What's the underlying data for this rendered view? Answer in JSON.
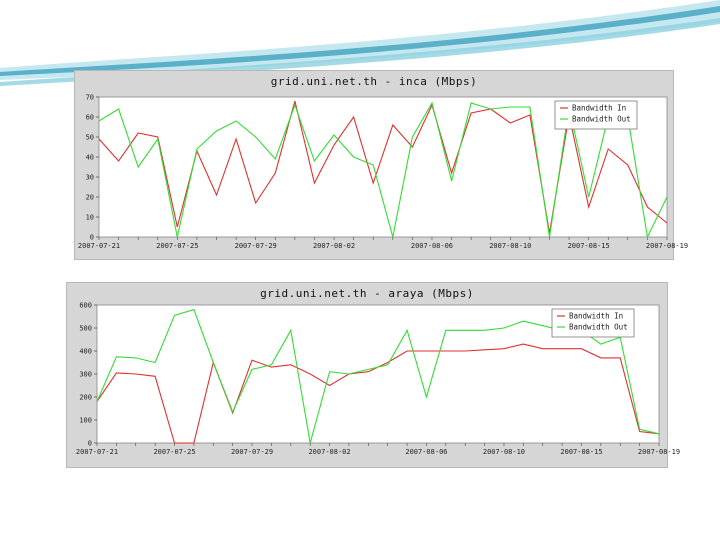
{
  "colors": {
    "bandwidth_in": "#e03030",
    "bandwidth_out": "#33dd33",
    "panel_bg": "#d6d6d6",
    "plot_bg": "#ffffff",
    "swoosh_dark": "#5ab0c8",
    "swoosh_light": "#bfe6ee"
  },
  "chart_data": [
    {
      "type": "line",
      "title": "grid.uni.net.th - inca (Mbps)",
      "xlabel": "",
      "ylabel": "",
      "ylim": [
        0,
        70
      ],
      "yticks": [
        0,
        10,
        20,
        30,
        40,
        50,
        60,
        70
      ],
      "x_tick_labels": [
        "2007-07-21",
        "2007-07-25",
        "2007-07-29",
        "2007-08-02",
        "2007-08-06",
        "2007-08-10",
        "2007-08-15",
        "2007-08-19"
      ],
      "grid": false,
      "legend_position": "top-right",
      "series": [
        {
          "name": "Bandwidth In",
          "values": [
            49,
            38,
            52,
            50,
            5,
            43,
            21,
            49,
            17,
            32,
            68,
            27,
            46,
            60,
            27,
            56,
            45,
            66,
            32,
            62,
            64,
            57,
            61,
            2,
            61,
            15,
            44,
            36,
            15,
            7
          ]
        },
        {
          "name": "Bandwidth Out",
          "values": [
            58,
            64,
            35,
            49,
            0,
            44,
            53,
            58,
            50,
            39,
            66,
            38,
            51,
            40,
            36,
            0,
            50,
            67,
            28,
            67,
            64,
            65,
            65,
            0,
            65,
            20,
            60,
            60,
            0,
            20
          ]
        }
      ]
    },
    {
      "type": "line",
      "title": "grid.uni.net.th - araya (Mbps)",
      "xlabel": "",
      "ylabel": "",
      "ylim": [
        0,
        600
      ],
      "yticks": [
        0,
        100,
        200,
        300,
        400,
        500,
        600
      ],
      "x_tick_labels": [
        "2007-07-21",
        "2007-07-25",
        "2007-07-29",
        "2007-08-02",
        "2007-08-06",
        "2007-08-10",
        "2007-08-15",
        "2007-08-19"
      ],
      "grid": false,
      "legend_position": "top-right",
      "series": [
        {
          "name": "Bandwidth In",
          "values": [
            180,
            305,
            300,
            290,
            0,
            0,
            350,
            130,
            360,
            330,
            340,
            300,
            250,
            300,
            310,
            350,
            400,
            400,
            400,
            400,
            405,
            410,
            430,
            410,
            410,
            410,
            370,
            370,
            50,
            40
          ]
        },
        {
          "name": "Bandwidth Out",
          "values": [
            180,
            375,
            370,
            350,
            555,
            580,
            350,
            135,
            320,
            340,
            490,
            0,
            310,
            300,
            320,
            340,
            490,
            200,
            490,
            490,
            490,
            500,
            530,
            510,
            490,
            490,
            430,
            460,
            60,
            40
          ]
        }
      ]
    }
  ]
}
